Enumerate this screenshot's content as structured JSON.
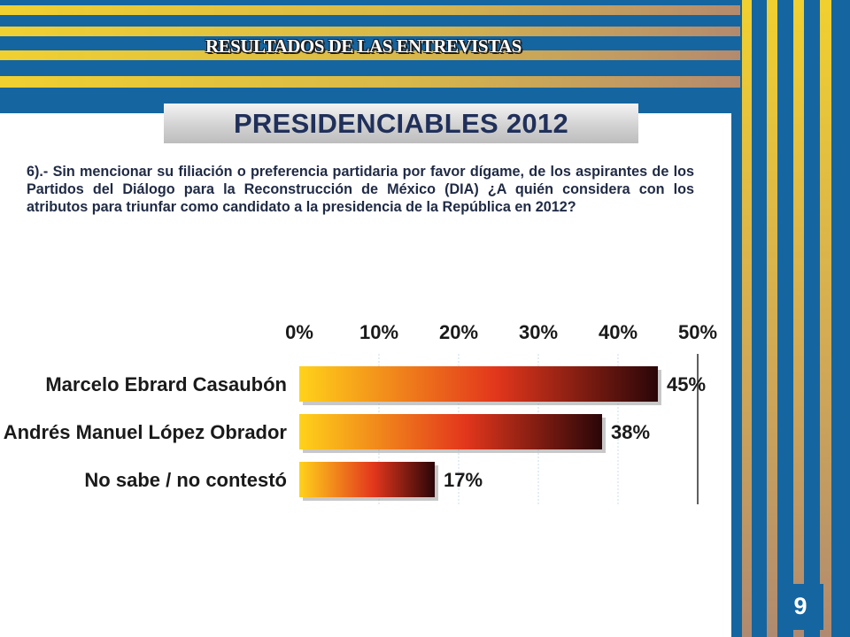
{
  "header": {
    "text": "RESULTADOS DE LAS ENTREVISTAS"
  },
  "title": {
    "text": "PRESIDENCIABLES 2012"
  },
  "question": {
    "text": "6).- Sin mencionar su filiación o preferencia partidaria por favor dígame, de los aspirantes de los Partidos del Diálogo para la Reconstrucción de México (DIA) ¿A quién considera con los atributos para triunfar como candidato a la presidencia de la República en 2012?"
  },
  "page": {
    "number": "9"
  },
  "colors": {
    "frame_blue": "#1565a0",
    "stripe_gold": "#e6c630",
    "stripe_tan": "#b98f6a",
    "bar_start": "#ffd21a",
    "bar_mid": "#e2361c",
    "bar_end": "#2a0608"
  },
  "chart_data": {
    "type": "bar",
    "orientation": "horizontal",
    "categories": [
      "Marcelo Ebrard Casaubón",
      "Andrés Manuel López Obrador",
      "No sabe / no contestó"
    ],
    "values": [
      45,
      38,
      17
    ],
    "value_labels": [
      "45%",
      "38%",
      "17%"
    ],
    "xlim": [
      0,
      50
    ],
    "tick_labels": [
      "0%",
      "10%",
      "20%",
      "30%",
      "40%",
      "50%"
    ],
    "grid": true
  }
}
